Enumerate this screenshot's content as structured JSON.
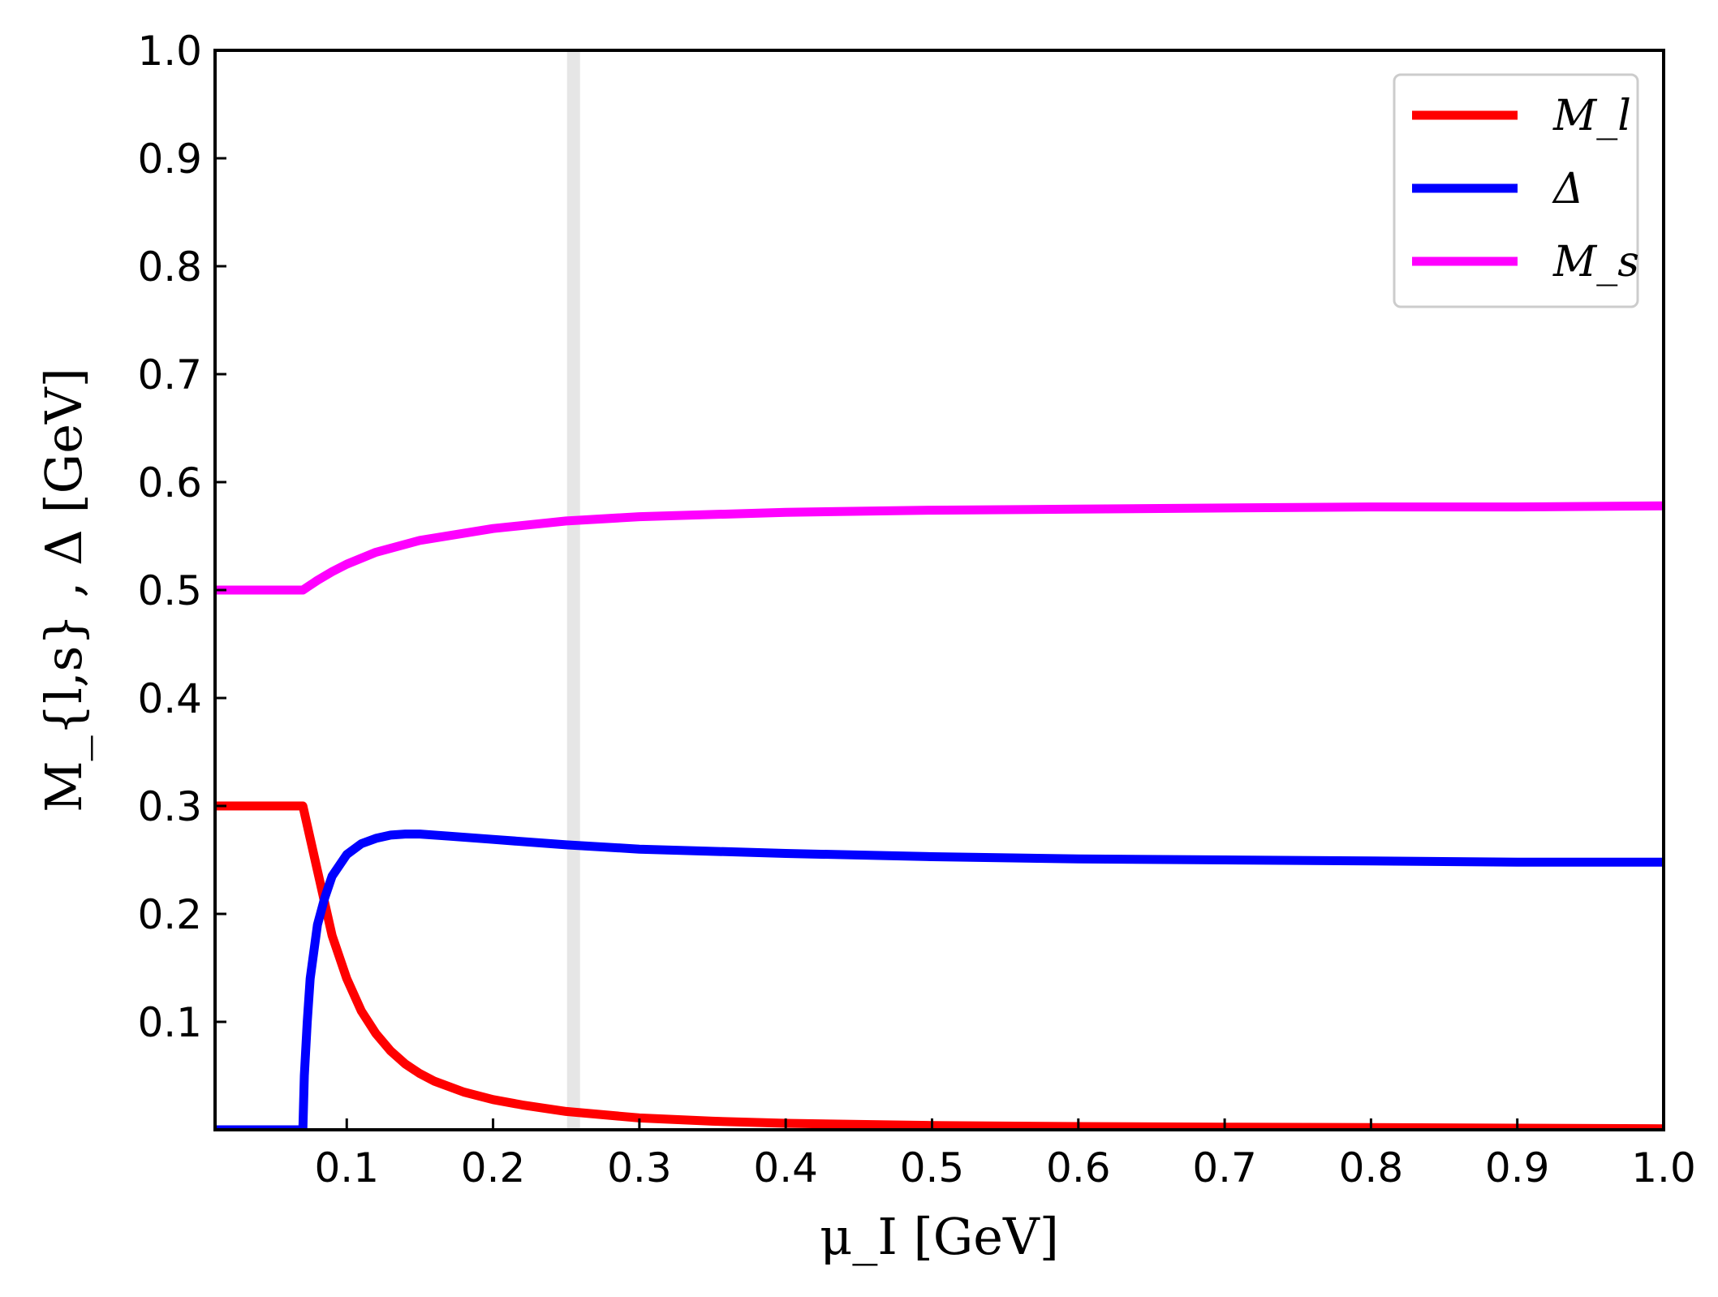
{
  "chart_data": {
    "type": "line",
    "xlabel": "μ_I [GeV]",
    "ylabel": "M_{l,s} , Δ [GeV]",
    "xlim": [
      0.01,
      1.0
    ],
    "ylim": [
      0.0,
      1.0
    ],
    "x_ticks": [
      0.1,
      0.2,
      0.3,
      0.4,
      0.5,
      0.6,
      0.7,
      0.8,
      0.9,
      1.0
    ],
    "x_tick_labels": [
      "0.1",
      "0.2",
      "0.3",
      "0.4",
      "0.5",
      "0.6",
      "0.7",
      "0.8",
      "0.9",
      "1.0"
    ],
    "y_ticks": [
      0.1,
      0.2,
      0.3,
      0.4,
      0.5,
      0.6,
      0.7,
      0.8,
      0.9,
      1.0
    ],
    "y_tick_labels": [
      "0.1",
      "0.2",
      "0.3",
      "0.4",
      "0.5",
      "0.6",
      "0.7",
      "0.8",
      "0.9",
      "1.0"
    ],
    "grid": false,
    "legend_position": "top-right",
    "vertical_band": {
      "x": 0.255,
      "color": "#e6e6e6"
    },
    "series": [
      {
        "name": "M_l",
        "color": "#ff0000",
        "x": [
          0.01,
          0.03,
          0.05,
          0.07,
          0.075,
          0.08,
          0.09,
          0.1,
          0.11,
          0.12,
          0.13,
          0.14,
          0.15,
          0.16,
          0.18,
          0.2,
          0.22,
          0.25,
          0.3,
          0.35,
          0.4,
          0.5,
          0.6,
          0.7,
          0.8,
          0.9,
          1.0
        ],
        "y": [
          0.3,
          0.3,
          0.3,
          0.3,
          0.27,
          0.24,
          0.18,
          0.14,
          0.11,
          0.089,
          0.073,
          0.061,
          0.052,
          0.045,
          0.035,
          0.028,
          0.023,
          0.017,
          0.011,
          0.008,
          0.006,
          0.004,
          0.003,
          0.0025,
          0.002,
          0.0015,
          0.001
        ]
      },
      {
        "name": "Δ",
        "color": "#0000ff",
        "x": [
          0.01,
          0.03,
          0.05,
          0.07,
          0.071,
          0.073,
          0.075,
          0.08,
          0.085,
          0.09,
          0.1,
          0.11,
          0.12,
          0.13,
          0.14,
          0.15,
          0.17,
          0.2,
          0.25,
          0.3,
          0.4,
          0.5,
          0.6,
          0.7,
          0.8,
          0.9,
          1.0
        ],
        "y": [
          0.0,
          0.0,
          0.0,
          0.0,
          0.05,
          0.1,
          0.14,
          0.19,
          0.215,
          0.235,
          0.255,
          0.265,
          0.27,
          0.273,
          0.274,
          0.274,
          0.272,
          0.269,
          0.264,
          0.26,
          0.256,
          0.253,
          0.251,
          0.25,
          0.249,
          0.248,
          0.248
        ]
      },
      {
        "name": "M_s",
        "color": "#ff00ff",
        "x": [
          0.01,
          0.03,
          0.05,
          0.07,
          0.08,
          0.09,
          0.1,
          0.12,
          0.15,
          0.2,
          0.25,
          0.3,
          0.4,
          0.5,
          0.6,
          0.7,
          0.8,
          0.9,
          1.0
        ],
        "y": [
          0.5,
          0.5,
          0.5,
          0.5,
          0.509,
          0.517,
          0.524,
          0.535,
          0.546,
          0.557,
          0.564,
          0.568,
          0.572,
          0.574,
          0.575,
          0.576,
          0.577,
          0.577,
          0.578
        ]
      }
    ]
  }
}
